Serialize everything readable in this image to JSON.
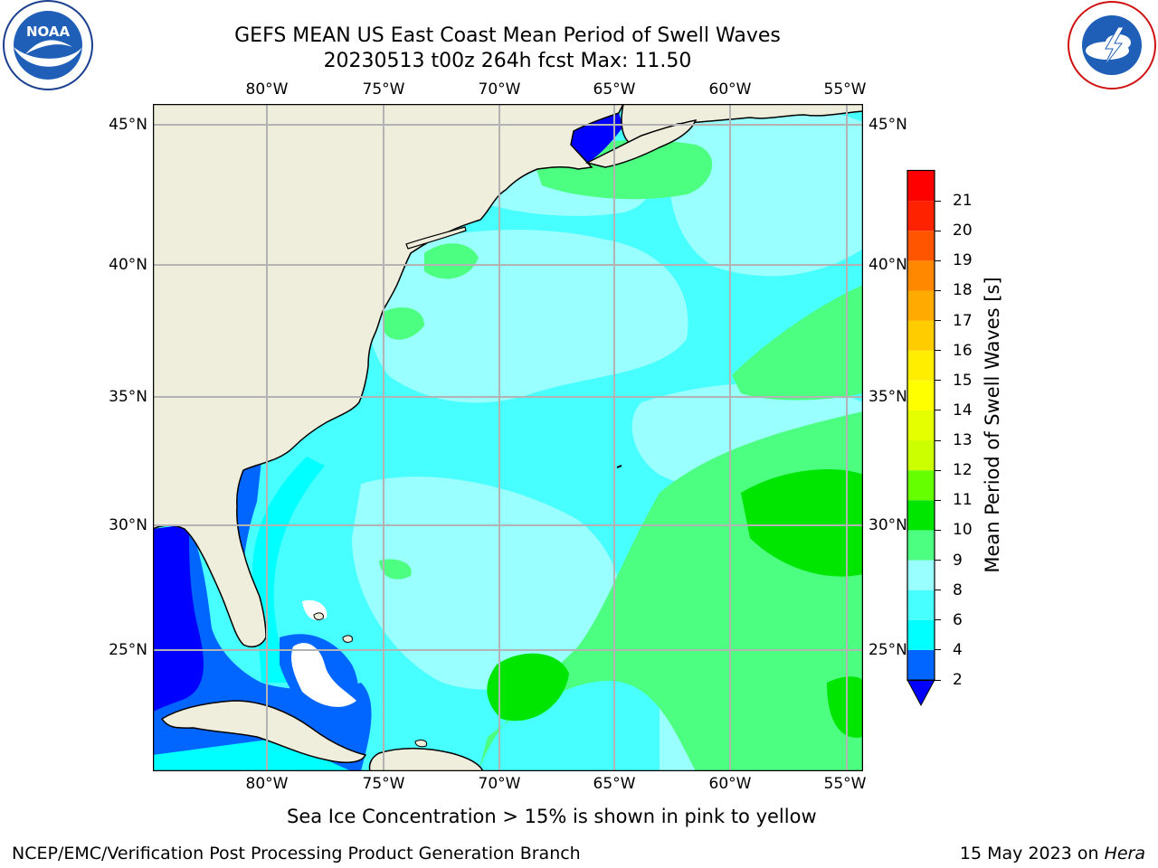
{
  "header": {
    "title_line1": "GEFS MEAN US East Coast Mean Period of Swell Waves",
    "title_line2": "20230513 t00z 264h fcst   Max: 11.50"
  },
  "logos": {
    "left": {
      "name": "noaa-logo",
      "text": "NOAA"
    },
    "right": {
      "name": "nws-logo",
      "text": "NATIONAL WEATHER SERVICE"
    }
  },
  "map": {
    "lon_ticks": [
      "80°W",
      "75°W",
      "70°W",
      "65°W",
      "60°W",
      "55°W"
    ],
    "lat_ticks": [
      "45°N",
      "40°N",
      "35°N",
      "30°N",
      "25°N"
    ],
    "colors": {
      "land": "#efeddc",
      "coast": "#000000",
      "grid": "#b3b3b3"
    }
  },
  "colorbar": {
    "title": "Mean Period of Swell Waves [s]",
    "levels": [
      "2",
      "4",
      "6",
      "8",
      "9",
      "10",
      "11",
      "12",
      "13",
      "14",
      "15",
      "16",
      "17",
      "18",
      "19",
      "20",
      "21"
    ],
    "colors": [
      "#0066ff",
      "#00ffff",
      "#48ffff",
      "#99ffff",
      "#4dff80",
      "#00e600",
      "#66ff00",
      "#ccff00",
      "#e6ff00",
      "#ffff00",
      "#ffee00",
      "#ffcc00",
      "#ffaa00",
      "#ff8800",
      "#ff5500",
      "#ff2200",
      "#ff0000"
    ],
    "under_color": "#0000ff"
  },
  "footer": {
    "note": "Sea Ice Concentration > 15% is shown in pink to yellow",
    "credit": "NCEP/EMC/Verification Post Processing Product Generation Branch",
    "date": "15 May 2023 on ",
    "machine": "Hera"
  }
}
